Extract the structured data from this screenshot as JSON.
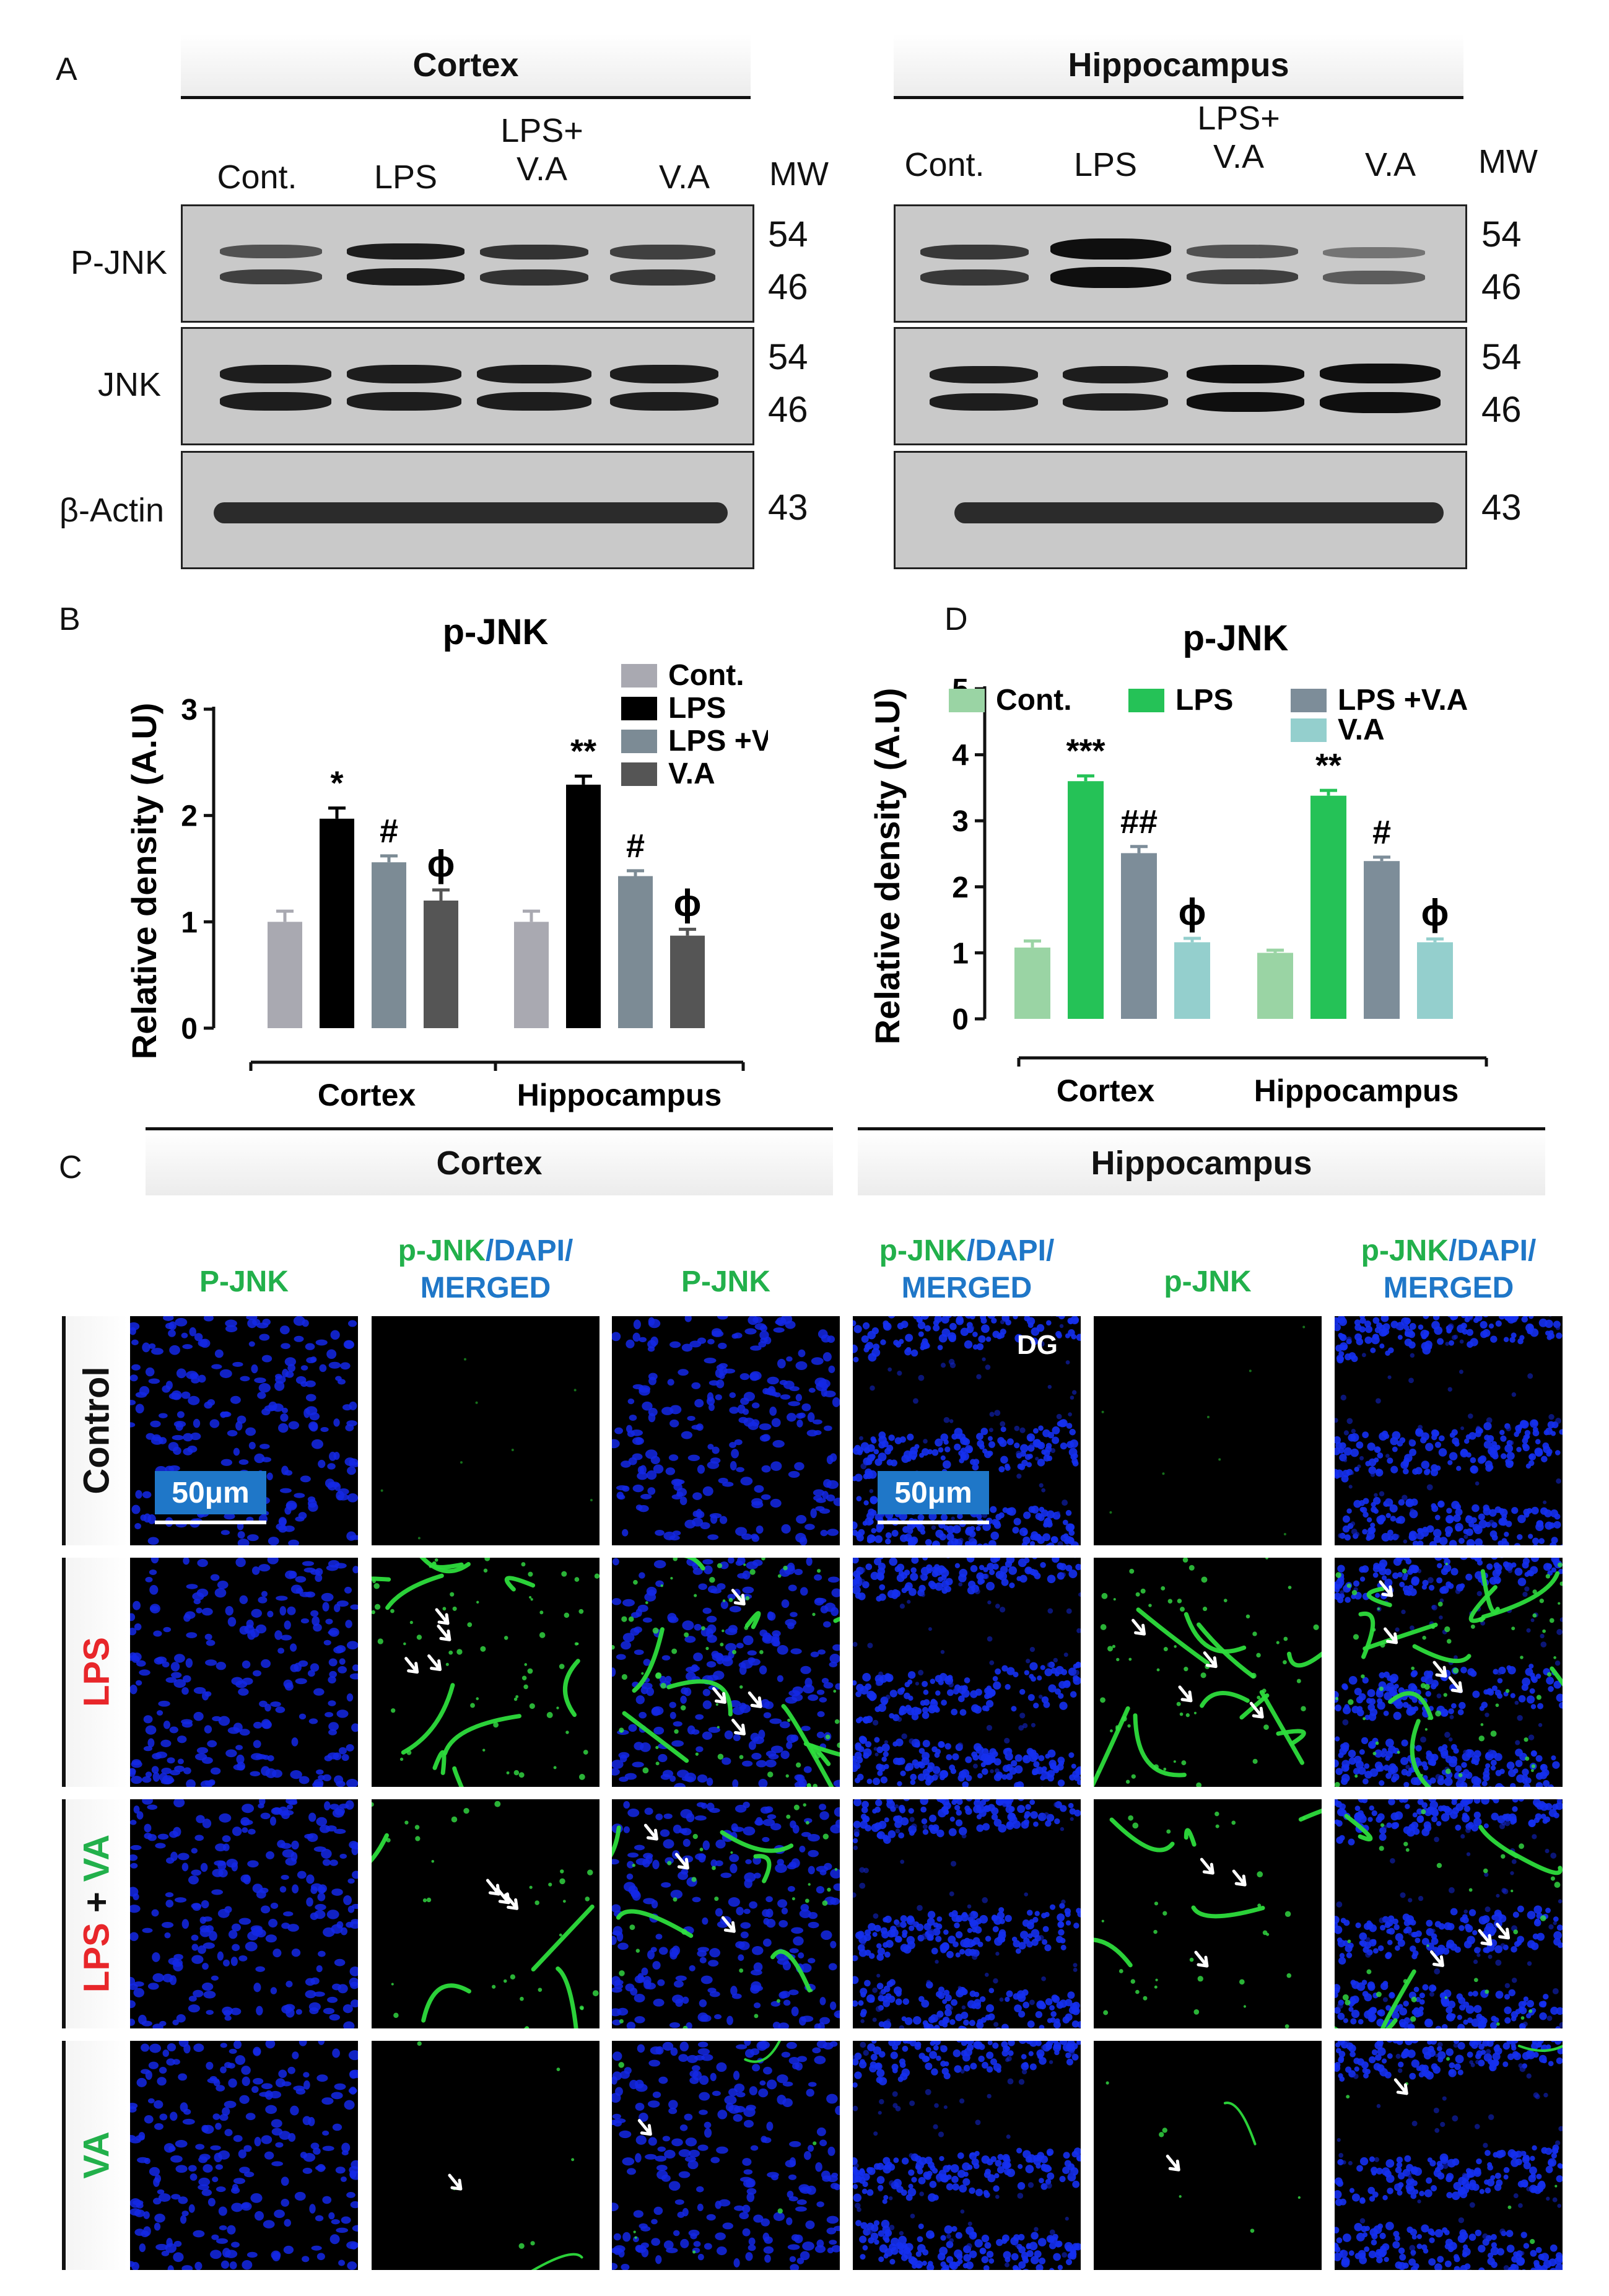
{
  "panelA": {
    "letter": "A",
    "regions": [
      {
        "title": "Cortex",
        "lanes": [
          "Cont.",
          "LPS",
          "LPS+\nV.A",
          "V.A"
        ],
        "mw_header": "MW"
      },
      {
        "title": "Hippocampus",
        "lanes": [
          "Cont.",
          "LPS",
          "LPS+\nV.A",
          "V.A"
        ],
        "mw_header": "MW"
      }
    ],
    "rows": [
      {
        "label": "P-JNK",
        "mw": [
          "54",
          "46"
        ]
      },
      {
        "label": "JNK",
        "mw": [
          "54",
          "46"
        ]
      },
      {
        "label": "β-Actin",
        "mw": [
          "43"
        ]
      }
    ]
  },
  "chart_data": [
    {
      "panel": "B",
      "type": "bar",
      "title": "p-JNK",
      "ylabel": "Relative density (A.U)",
      "xlabel": "",
      "ylim": [
        0,
        3
      ],
      "yticks": [
        "0",
        "1",
        "2",
        "3"
      ],
      "categories": [
        "Cortex",
        "Hippocampus"
      ],
      "series": [
        {
          "name": "Cont.",
          "color": "#a9a9b1",
          "values": [
            1.0,
            1.0
          ],
          "errors": [
            0.1,
            0.1
          ],
          "marks": [
            "",
            ""
          ]
        },
        {
          "name": "LPS",
          "color": "#000000",
          "values": [
            1.97,
            2.29
          ],
          "errors": [
            0.1,
            0.08
          ],
          "marks": [
            "*",
            "**"
          ]
        },
        {
          "name": "LPS +V.A",
          "color": "#7c8b95",
          "values": [
            1.56,
            1.43
          ],
          "errors": [
            0.06,
            0.05
          ],
          "marks": [
            "#",
            "#"
          ]
        },
        {
          "name": "V.A",
          "color": "#555555",
          "values": [
            1.2,
            0.87
          ],
          "errors": [
            0.1,
            0.06
          ],
          "marks": [
            "ϕ",
            "ϕ"
          ]
        }
      ],
      "legend_position": "top-right"
    },
    {
      "panel": "D",
      "type": "bar",
      "title": "p-JNK",
      "ylabel": "Relative density (A.U)",
      "xlabel": "",
      "ylim": [
        0,
        5
      ],
      "yticks": [
        "0",
        "1",
        "2",
        "3",
        "4",
        "5"
      ],
      "categories": [
        "Cortex",
        "Hippocampus"
      ],
      "series": [
        {
          "name": "Cont.",
          "color": "#9ad4a4",
          "values": [
            1.08,
            1.0
          ],
          "errors": [
            0.1,
            0.04
          ],
          "marks": [
            "",
            ""
          ]
        },
        {
          "name": "LPS",
          "color": "#25c257",
          "values": [
            3.6,
            3.38
          ],
          "errors": [
            0.08,
            0.08
          ],
          "marks": [
            "***",
            "**"
          ]
        },
        {
          "name": "LPS +V.A",
          "color": "#7d8d99",
          "values": [
            2.51,
            2.39
          ],
          "errors": [
            0.1,
            0.06
          ],
          "marks": [
            "##",
            "#"
          ]
        },
        {
          "name": "V.A",
          "color": "#94cfcd",
          "values": [
            1.16,
            1.16
          ],
          "errors": [
            0.06,
            0.05
          ],
          "marks": [
            "ϕ",
            "ϕ"
          ]
        }
      ],
      "legend_position": "top"
    }
  ],
  "panelB_letter": "B",
  "panelD_letter": "D",
  "panelC": {
    "letter": "C",
    "regions": [
      "Cortex",
      "Hippocampus"
    ],
    "col_headers": [
      {
        "a": "P-JNK",
        "b": "",
        "c": ""
      },
      {
        "a": "p-JNK",
        "b": "/DAPI/",
        "c": "MERGED"
      },
      {
        "a": "P-JNK",
        "b": "",
        "c": ""
      },
      {
        "a": "p-JNK",
        "b": "/DAPI/",
        "c": "MERGED"
      },
      {
        "a": "p-JNK",
        "b": "",
        "c": ""
      },
      {
        "a": "p-JNK",
        "b": "/DAPI/",
        "c": "MERGED"
      }
    ],
    "rows": [
      "Control",
      "LPS",
      "LPS + VA",
      "VA"
    ],
    "row_parts": [
      [
        {
          "t": "Control",
          "c": "#111111"
        }
      ],
      [
        {
          "t": "LPS",
          "c": "#e8262a"
        }
      ],
      [
        {
          "t": "LPS",
          "c": "#e8262a"
        },
        {
          "t": " + ",
          "c": "#111111"
        },
        {
          "t": "VA",
          "c": "#22b04b"
        }
      ],
      [
        {
          "t": "VA",
          "c": "#22b04b"
        }
      ]
    ],
    "scale_label": "50μm",
    "dg_label": "DG"
  }
}
